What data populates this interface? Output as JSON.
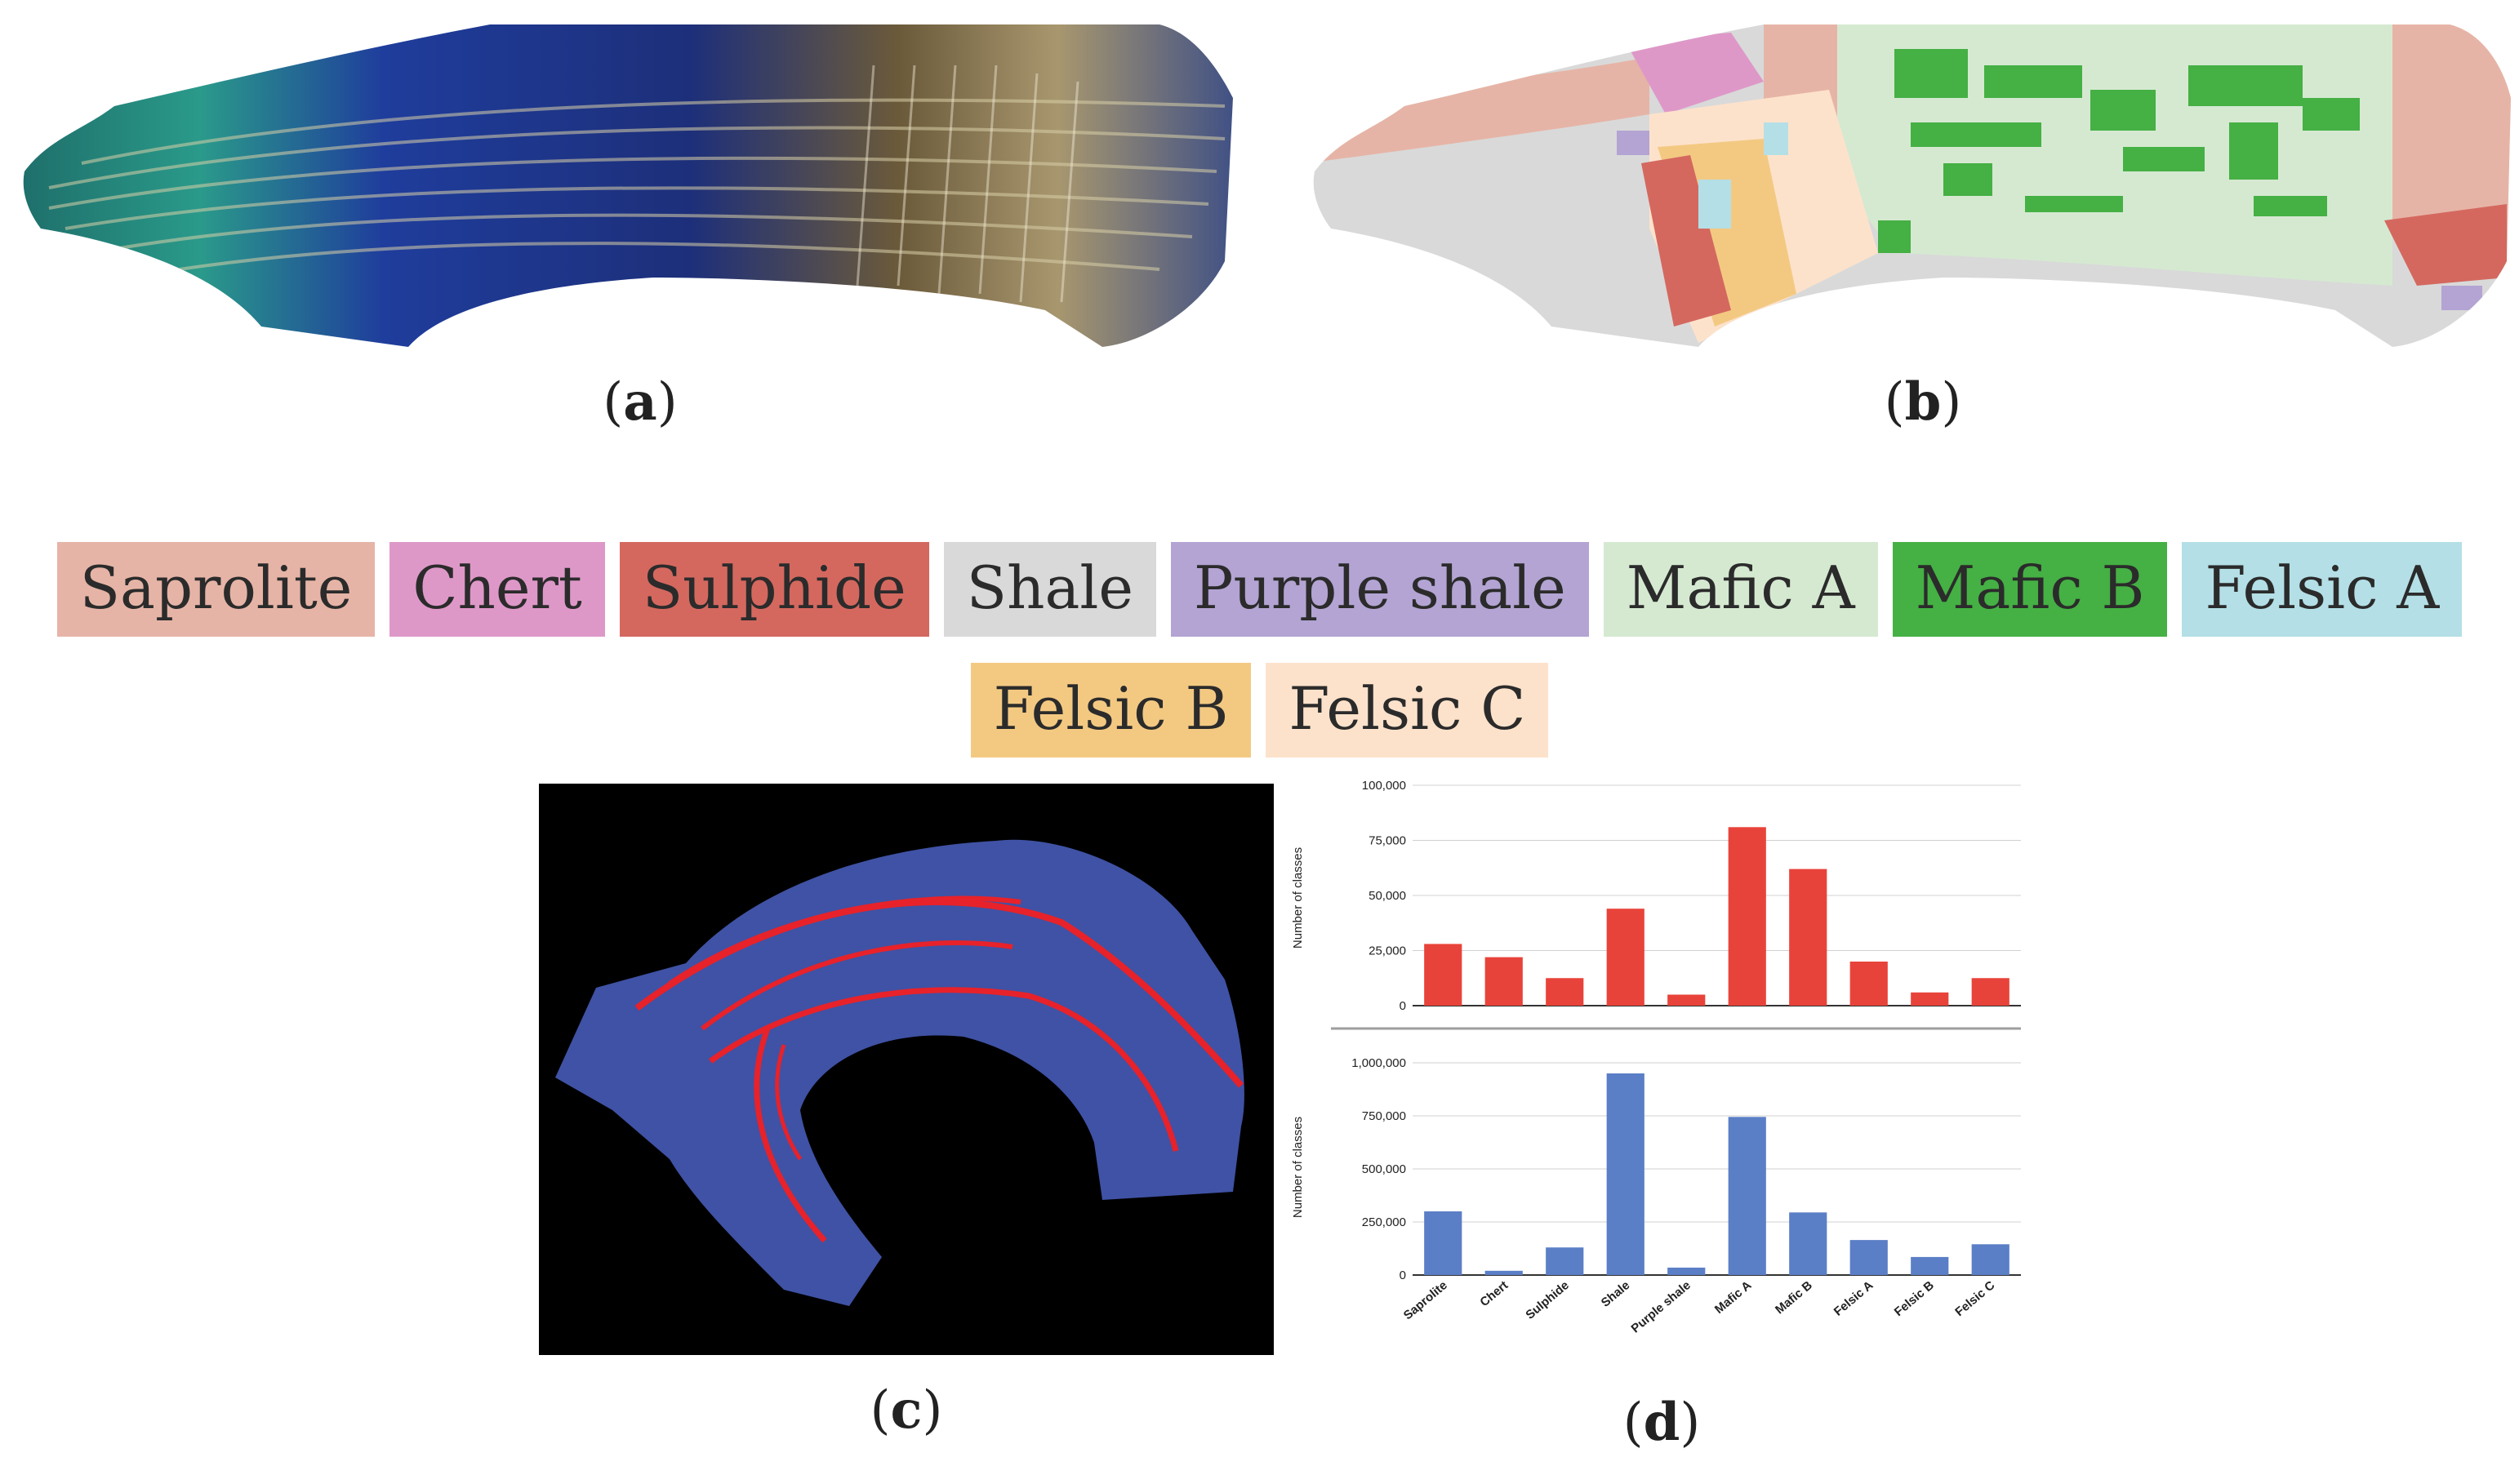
{
  "captions": {
    "a": "a",
    "b": "b",
    "c": "c",
    "d": "d"
  },
  "legend": [
    {
      "label": "Saprolite",
      "color": "#e6b4a6"
    },
    {
      "label": "Chert",
      "color": "#de98c8"
    },
    {
      "label": "Sulphide",
      "color": "#d4685f"
    },
    {
      "label": "Shale",
      "color": "#d9d9d9"
    },
    {
      "label": "Purple shale",
      "color": "#b3a4d3"
    },
    {
      "label": "Mafic A",
      "color": "#d5e9d1"
    },
    {
      "label": "Mafic B",
      "color": "#45b044"
    },
    {
      "label": "Felsic A",
      "color": "#b4dfe6"
    },
    {
      "label": "Felsic B",
      "color": "#f3c982"
    },
    {
      "label": "Felsic C",
      "color": "#fde2cb"
    }
  ],
  "chart_data": [
    {
      "type": "bar",
      "ylabel": "Number of classes",
      "ylim": [
        0,
        100000
      ],
      "yticks": [
        "0",
        "25,000",
        "50,000",
        "75,000",
        "100,000"
      ],
      "color": "#e8433a",
      "categories": [
        "Saprolite",
        "Chert",
        "Sulphide",
        "Shale",
        "Purple shale",
        "Mafic A",
        "Mafic B",
        "Felsic A",
        "Felsic B",
        "Felsic C"
      ],
      "values": [
        28000,
        22000,
        12500,
        44000,
        5000,
        81000,
        62000,
        20000,
        6000,
        12500
      ]
    },
    {
      "type": "bar",
      "ylabel": "Number of classes",
      "ylim": [
        0,
        1000000
      ],
      "yticks": [
        "0",
        "250,000",
        "500,000",
        "750,000",
        "1,000,000"
      ],
      "color": "#5b7fc6",
      "categories": [
        "Saprolite",
        "Chert",
        "Sulphide",
        "Shale",
        "Purple shale",
        "Mafic A",
        "Mafic B",
        "Felsic A",
        "Felsic B",
        "Felsic C"
      ],
      "values": [
        300000,
        20000,
        130000,
        950000,
        35000,
        745000,
        295000,
        165000,
        85000,
        145000
      ]
    }
  ]
}
